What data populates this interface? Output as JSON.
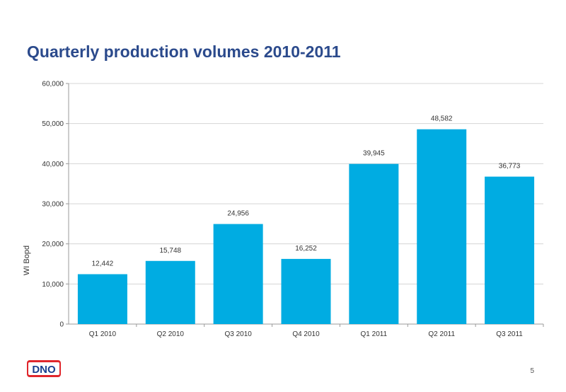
{
  "slide": {
    "title": "Quarterly production volumes 2010-2011",
    "page_number": "5",
    "logo_text": "DNO"
  },
  "colors": {
    "title": "#2b4a8c",
    "bar": "#00ace2",
    "logo_red": "#e0262c",
    "logo_blue": "#1a3f8f"
  },
  "chart_data": {
    "type": "bar",
    "categories": [
      "Q1 2010",
      "Q2 2010",
      "Q3 2010",
      "Q4 2010",
      "Q1 2011",
      "Q2 2011",
      "Q3 2011"
    ],
    "values": [
      12442,
      15748,
      24956,
      16252,
      39945,
      48582,
      36773
    ],
    "data_labels": [
      "12,442",
      "15,748",
      "24,956",
      "16,252",
      "39,945",
      "48,582",
      "36,773"
    ],
    "ylabel": "WI Bopd",
    "xlabel": "",
    "ylim": [
      0,
      60000
    ],
    "yticks": [
      0,
      10000,
      20000,
      30000,
      40000,
      50000,
      60000
    ],
    "ytick_labels": [
      "0",
      "10,000",
      "20,000",
      "30,000",
      "40,000",
      "50,000",
      "60,000"
    ],
    "grid": true,
    "legend": "none"
  }
}
